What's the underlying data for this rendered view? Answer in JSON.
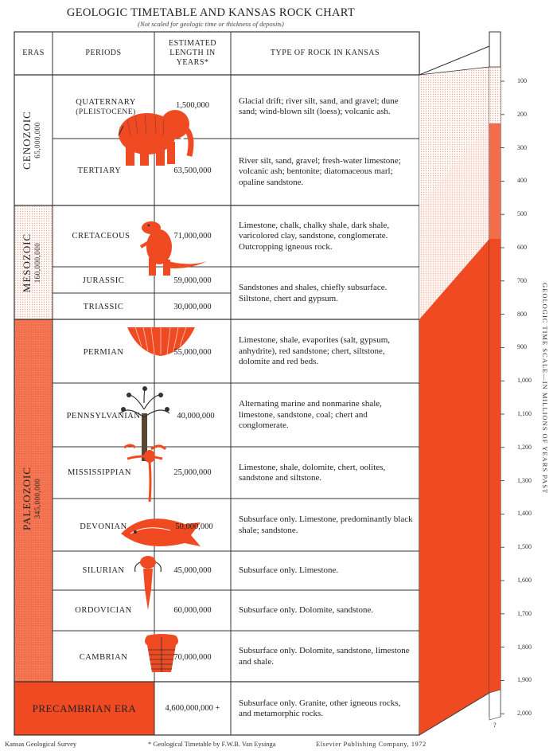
{
  "title": "GEOLOGIC TIMETABLE AND KANSAS ROCK CHART",
  "subtitle": "(Not scaled for geologic time or thickness of deposits)",
  "headers": {
    "eras": "ERAS",
    "periods": "PERIODS",
    "length": "ESTIMATED LENGTH IN YEARS*",
    "rock": "TYPE OF ROCK IN KANSAS"
  },
  "eras": [
    {
      "name": "CENOZOIC",
      "years": "65,000,000"
    },
    {
      "name": "MESOZOIC",
      "years": "160,000,000"
    },
    {
      "name": "PALEOZOIC",
      "years": "345,000,000"
    },
    {
      "name": "PRECAMBRIAN ERA",
      "years": ""
    }
  ],
  "periods": [
    {
      "name": "QUATERNARY",
      "sub": "(PLEISTOCENE)",
      "years": "1,500,000",
      "rock": "Glacial drift; river silt, sand, and gravel; dune sand; wind-blown silt (loess); volcanic ash."
    },
    {
      "name": "TERTIARY",
      "years": "63,500,000",
      "rock": "River silt, sand, gravel; fresh-water limestone; volcanic ash; bentonite; diatomaceous marl; opaline sandstone."
    },
    {
      "name": "CRETACEOUS",
      "years": "71,000,000",
      "rock": "Limestone, chalk, chalky shale, dark shale, varicolored clay, sandstone, conglomerate. Outcropping igneous rock."
    },
    {
      "name": "JURASSIC",
      "years": "59,000,000",
      "rock": "Sandstones and shales, chiefly subsurface. Siltstone, chert and gypsum."
    },
    {
      "name": "TRIASSIC",
      "years": "30,000,000",
      "rock": ""
    },
    {
      "name": "PERMIAN",
      "years": "55,000,000",
      "rock": "Limestone, shale, evaporites (salt, gypsum, anhydrite), red sandstone; chert, siltstone, dolomite and red beds."
    },
    {
      "name": "PENNSYLVANIAN",
      "years": "40,000,000",
      "rock": "Alternating marine and nonmarine shale, limestone, sandstone, coal; chert and conglomerate."
    },
    {
      "name": "MISSISSIPPIAN",
      "years": "25,000,000",
      "rock": "Limestone, shale, dolomite, chert, oolites, sandstone and siltstone."
    },
    {
      "name": "DEVONIAN",
      "years": "50,000,000",
      "rock": "Subsurface only. Limestone, predominantly black shale; sandstone."
    },
    {
      "name": "SILURIAN",
      "years": "45,000,000",
      "rock": "Subsurface only. Limestone."
    },
    {
      "name": "ORDOVICIAN",
      "years": "60,000,000",
      "rock": "Subsurface only. Dolomite, sandstone."
    },
    {
      "name": "CAMBRIAN",
      "years": "70,000,000",
      "rock": "Subsurface only. Dolomite, sandstone, limestone and shale."
    }
  ],
  "precambrian": {
    "years": "4,600,000,000 +",
    "rock": "Subsurface only. Granite, other igneous rocks, and metamorphic rocks."
  },
  "scale": {
    "title": "GEOLOGIC TIME SCALE—IN MILLIONS OF YEARS PAST",
    "ticks": [
      "100",
      "200",
      "300",
      "400",
      "500",
      "600",
      "700",
      "800",
      "900",
      "1,000",
      "1,100",
      "1,200",
      "1,300",
      "1,400",
      "1,500",
      "1,600",
      "1,700",
      "1,800",
      "1,900",
      "2,000"
    ],
    "bottom_mark": "?"
  },
  "footer": {
    "left": "Kansas Geological Survey",
    "middle": "* Geological Timetable by F.W.B. Van Eysinga",
    "right": "Elsevier Publishing Company, 1972"
  },
  "colors": {
    "accent": "#f04a23",
    "cenozoic_tint": "#ffffff",
    "mesozoic_tint": "#fde8e0",
    "paleozoic": "#f36d4a",
    "grid": "#333333"
  },
  "icons": [
    "mammoth-icon",
    "dinosaur-icon",
    "brachiopod-icon",
    "tree-fern-icon",
    "crinoid-icon",
    "fish-icon",
    "eurypterid-icon",
    "trilobite-icon"
  ]
}
